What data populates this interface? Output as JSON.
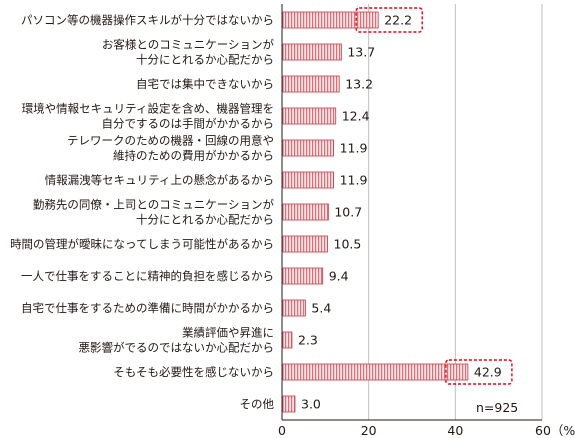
{
  "chart_data": {
    "type": "bar",
    "orientation": "horizontal",
    "categories": [
      [
        "パソコン等の機器操作スキルが十分ではないから"
      ],
      [
        "お客様とのコミュニケーションが",
        "十分にとれるか心配だから"
      ],
      [
        "自宅では集中できないから"
      ],
      [
        "環境や情報セキュリティ設定を含め、機器管理を",
        "自分でするのは手間がかかるから"
      ],
      [
        "テレワークのための機器・回線の用意や",
        "維持のための費用がかかるから"
      ],
      [
        "情報漏洩等セキュリティ上の懸念があるから"
      ],
      [
        "勤務先の同僚・上司とのコミュニケーションが",
        "十分にとれるか心配だから"
      ],
      [
        "時間の管理が曖昧になってしまう可能性があるから"
      ],
      [
        "一人で仕事をすることに精神的負担を感じるから"
      ],
      [
        "自宅で仕事をするための準備に時間がかかるから"
      ],
      [
        "業績評価や昇進に",
        "悪影響がでるのではないか心配だから"
      ],
      [
        "そもそも必要性を感じないから"
      ],
      [
        "その他"
      ]
    ],
    "values": [
      22.2,
      13.7,
      13.2,
      12.4,
      11.9,
      11.9,
      10.7,
      10.5,
      9.4,
      5.4,
      2.3,
      42.9,
      3.0
    ],
    "value_labels": [
      "22.2",
      "13.7",
      "13.2",
      "12.4",
      "11.9",
      "11.9",
      "10.7",
      "10.5",
      "9.4",
      "5.4",
      "2.3",
      "42.9",
      "3.0"
    ],
    "highlighted": [
      0,
      11
    ],
    "xlim": [
      0,
      60
    ],
    "xticks": [
      0,
      20,
      40,
      60
    ],
    "xtick_labels": [
      "0",
      "20",
      "40",
      "60（%）"
    ],
    "grid": true,
    "note": "n=925",
    "colors": {
      "bar_fill": "#fbe3e3",
      "bar_stripe": "#d9707a",
      "bar_border": "#c63c46",
      "highlight_box": "#e60012",
      "grid": "#bfbfbf",
      "axis": "#231815"
    }
  }
}
